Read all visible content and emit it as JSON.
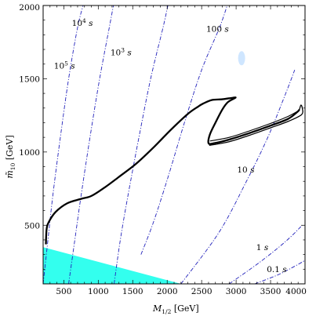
{
  "chart_data": {
    "type": "line",
    "xlabel": "M_{1/2} [GeV]",
    "ylabel": "m̃_{10} [GeV]",
    "xlim": [
      200,
      4000
    ],
    "ylim": [
      100,
      2000
    ],
    "x_ticks": [
      500,
      1000,
      1500,
      2000,
      2500,
      3000,
      3500,
      4000
    ],
    "y_ticks": [
      500,
      1000,
      1500,
      2000
    ],
    "x_tick_labels": [
      "500",
      "1000",
      "1500",
      "2000",
      "2500",
      "3000",
      "3500",
      "4000"
    ],
    "y_tick_labels": [
      "500",
      "1000",
      "1500",
      "2000"
    ],
    "grid": false,
    "excluded_region": {
      "color": "#33ffee",
      "points": [
        [
          200,
          350
        ],
        [
          200,
          100
        ],
        [
          2200,
          100
        ]
      ]
    },
    "lifetime_contours": [
      {
        "label_base": "10",
        "label_exp": "5",
        "label_unit": "s",
        "label_pos": [
          510,
          1570
        ],
        "points": [
          [
            200,
            100
          ],
          [
            270,
            400
          ],
          [
            340,
            700
          ],
          [
            450,
            1100
          ],
          [
            570,
            1500
          ],
          [
            700,
            1850
          ],
          [
            780,
            2000
          ]
        ]
      },
      {
        "label_base": "10",
        "label_exp": "4",
        "label_unit": "s",
        "label_pos": [
          770,
          1860
        ],
        "points": [
          [
            570,
            100
          ],
          [
            660,
            400
          ],
          [
            750,
            700
          ],
          [
            880,
            1100
          ],
          [
            1020,
            1500
          ],
          [
            1160,
            1850
          ],
          [
            1220,
            2000
          ]
        ]
      },
      {
        "label_base": "10",
        "label_exp": "3",
        "label_unit": "s",
        "label_pos": [
          1330,
          1660
        ],
        "points": [
          [
            1230,
            100
          ],
          [
            1320,
            400
          ],
          [
            1430,
            700
          ],
          [
            1590,
            1100
          ],
          [
            1760,
            1500
          ],
          [
            1940,
            1850
          ],
          [
            2010,
            2000
          ]
        ]
      },
      {
        "label": "100",
        "label_unit": "s",
        "label_pos": [
          2730,
          1820
        ],
        "points": [
          [
            1620,
            300
          ],
          [
            1800,
            520
          ],
          [
            2020,
            840
          ],
          [
            2250,
            1200
          ],
          [
            2500,
            1560
          ],
          [
            2760,
            1850
          ],
          [
            2870,
            2000
          ]
        ]
      },
      {
        "label": "10",
        "label_unit": "s",
        "label_pos": [
          3140,
          860
        ],
        "points": [
          [
            2200,
            100
          ],
          [
            2750,
            450
          ],
          [
            3150,
            800
          ],
          [
            3460,
            1100
          ],
          [
            3720,
            1400
          ],
          [
            3850,
            1560
          ]
        ]
      },
      {
        "label": "1",
        "label_unit": "s",
        "label_pos": [
          3380,
          330
        ],
        "points": [
          [
            2900,
            100
          ],
          [
            3350,
            250
          ],
          [
            3720,
            390
          ],
          [
            3960,
            500
          ]
        ]
      },
      {
        "label": "0.1",
        "label_unit": "s",
        "label_pos": [
          3590,
          180
        ],
        "points": [
          [
            3270,
            100
          ],
          [
            3600,
            160
          ],
          [
            3850,
            220
          ],
          [
            4000,
            260
          ]
        ]
      }
    ],
    "boundary_curve": {
      "description_visible": false,
      "main": [
        [
          240,
          370
        ],
        [
          250,
          470
        ],
        [
          280,
          520
        ],
        [
          380,
          590
        ],
        [
          550,
          650
        ],
        [
          750,
          680
        ],
        [
          900,
          700
        ],
        [
          1100,
          760
        ],
        [
          1300,
          830
        ],
        [
          1550,
          920
        ],
        [
          1800,
          1030
        ],
        [
          2050,
          1150
        ],
        [
          2300,
          1260
        ],
        [
          2450,
          1310
        ],
        [
          2520,
          1330
        ],
        [
          2650,
          1355
        ],
        [
          2800,
          1360
        ],
        [
          2950,
          1370
        ],
        [
          2990,
          1370
        ],
        [
          2880,
          1340
        ],
        [
          2800,
          1290
        ],
        [
          2700,
          1200
        ],
        [
          2620,
          1120
        ],
        [
          2600,
          1060
        ],
        [
          2680,
          1060
        ],
        [
          2900,
          1085
        ],
        [
          3200,
          1130
        ],
        [
          3500,
          1180
        ],
        [
          3750,
          1225
        ],
        [
          3880,
          1270
        ],
        [
          3920,
          1290
        ]
      ],
      "loop_outer": [
        [
          2610,
          1045
        ],
        [
          2900,
          1070
        ],
        [
          3200,
          1115
        ],
        [
          3500,
          1165
        ],
        [
          3760,
          1210
        ],
        [
          3950,
          1255
        ],
        [
          3960,
          1300
        ],
        [
          3940,
          1320
        ],
        [
          3920,
          1290
        ]
      ],
      "loop_inner": [
        [
          2620,
          1075
        ],
        [
          2900,
          1100
        ],
        [
          3200,
          1145
        ],
        [
          3500,
          1195
        ],
        [
          3740,
          1240
        ],
        [
          3900,
          1280
        ]
      ]
    },
    "highlight_blob": {
      "center": [
        3080,
        1640
      ],
      "color": "#cfe6ff"
    }
  }
}
